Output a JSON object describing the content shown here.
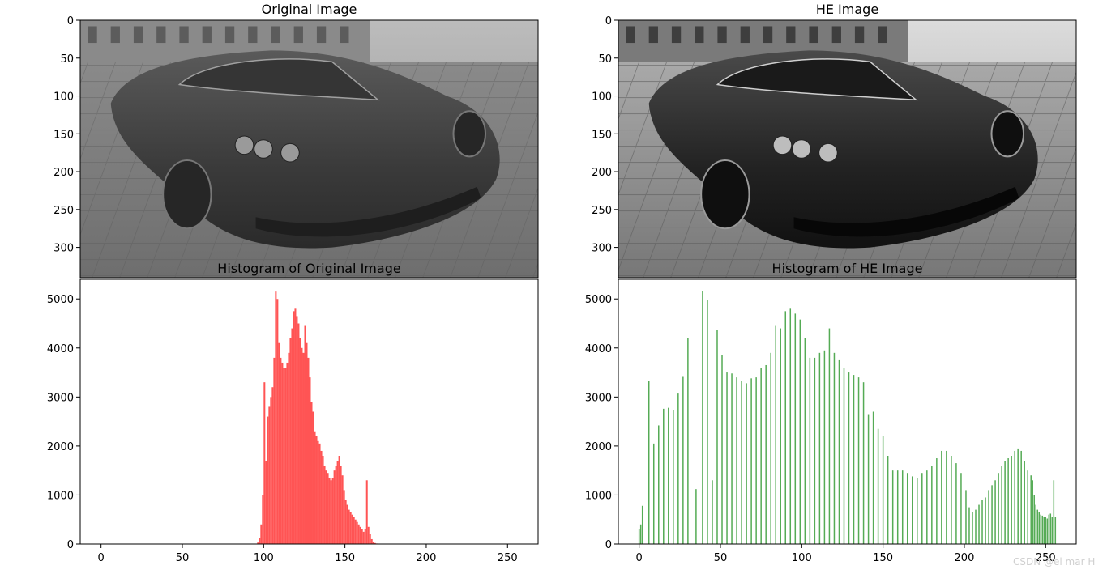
{
  "watermark": "CSDN @el mar H",
  "colors": {
    "original_hist": "#ff4b4b",
    "he_hist": "#4ca64c",
    "axes": "#000000",
    "background": "#ffffff"
  },
  "chart_data": [
    {
      "type": "image",
      "title": "Original Image",
      "content": "grayscale photograph of a sports car on cobblestones",
      "xlim": [
        0,
        600
      ],
      "ylim": [
        340,
        0
      ],
      "yticks": [
        0,
        50,
        100,
        150,
        200,
        250,
        300
      ]
    },
    {
      "type": "image",
      "title": "HE Image",
      "content": "histogram-equalized grayscale photograph of a sports car on cobblestones",
      "xlim": [
        0,
        600
      ],
      "ylim": [
        340,
        0
      ],
      "yticks": [
        0,
        50,
        100,
        150,
        200,
        250,
        300
      ]
    },
    {
      "type": "bar",
      "title": "Histogram of Original Image",
      "xlabel": "",
      "ylabel": "",
      "xlim": [
        -12.8,
        268.8
      ],
      "ylim": [
        0,
        5400
      ],
      "xticks": [
        0,
        50,
        100,
        150,
        200,
        250
      ],
      "yticks": [
        0,
        1000,
        2000,
        3000,
        4000,
        5000
      ],
      "color": "#ff4b4b",
      "x": [
        96,
        97,
        98,
        99,
        100,
        101,
        102,
        103,
        104,
        105,
        106,
        107,
        108,
        109,
        110,
        111,
        112,
        113,
        114,
        115,
        116,
        117,
        118,
        119,
        120,
        121,
        122,
        123,
        124,
        125,
        126,
        127,
        128,
        129,
        130,
        131,
        132,
        133,
        134,
        135,
        136,
        137,
        138,
        139,
        140,
        141,
        142,
        143,
        144,
        145,
        146,
        147,
        148,
        149,
        150,
        151,
        152,
        153,
        154,
        155,
        156,
        157,
        158,
        159,
        160,
        161,
        162,
        163,
        164,
        165,
        166,
        167,
        168,
        169,
        170,
        171,
        172,
        173,
        174,
        175,
        176,
        177,
        178,
        179,
        180
      ],
      "values": [
        30,
        120,
        400,
        1000,
        3300,
        1700,
        2600,
        2800,
        3000,
        3200,
        3800,
        5150,
        5000,
        4100,
        3800,
        3700,
        3600,
        3600,
        3700,
        3900,
        4200,
        4400,
        4750,
        4800,
        4650,
        4500,
        4200,
        4000,
        3900,
        4450,
        4100,
        3800,
        3400,
        2900,
        2700,
        2300,
        2200,
        2100,
        2050,
        1900,
        1800,
        1600,
        1500,
        1450,
        1350,
        1300,
        1350,
        1500,
        1600,
        1700,
        1800,
        1600,
        1400,
        1100,
        900,
        800,
        700,
        650,
        600,
        550,
        500,
        450,
        400,
        350,
        300,
        250,
        300,
        1300,
        350,
        200,
        100,
        50,
        20,
        10,
        5,
        3,
        2,
        1,
        1,
        0,
        0,
        0,
        0,
        0,
        0
      ],
      "values_note_omitted": false
    },
    {
      "type": "bar",
      "title": "Histogram of HE Image",
      "xlabel": "",
      "ylabel": "",
      "xlim": [
        -12.8,
        268.8
      ],
      "ylim": [
        0,
        5400
      ],
      "xticks": [
        0,
        50,
        100,
        150,
        200,
        250
      ],
      "yticks": [
        0,
        1000,
        2000,
        3000,
        4000,
        5000
      ],
      "color": "#4ca64c",
      "x": [
        0,
        1,
        2,
        6,
        9,
        12,
        15,
        18,
        21,
        24,
        27,
        30,
        35,
        39,
        42,
        45,
        48,
        51,
        54,
        57,
        60,
        63,
        66,
        69,
        72,
        75,
        78,
        81,
        84,
        87,
        90,
        93,
        96,
        99,
        102,
        105,
        108,
        111,
        114,
        117,
        120,
        123,
        126,
        129,
        132,
        135,
        138,
        141,
        144,
        147,
        150,
        153,
        156,
        159,
        162,
        165,
        168,
        171,
        174,
        177,
        180,
        183,
        186,
        189,
        192,
        195,
        198,
        201,
        203,
        205,
        207,
        209,
        211,
        213,
        215,
        217,
        219,
        221,
        223,
        225,
        227,
        229,
        231,
        233,
        235,
        237,
        239,
        241,
        242,
        243,
        244,
        245,
        246,
        247,
        248,
        249,
        250,
        251,
        252,
        253,
        254,
        255,
        256
      ],
      "values": [
        300,
        400,
        780,
        3320,
        2050,
        2420,
        2760,
        2780,
        2740,
        3070,
        3410,
        4210,
        1120,
        5160,
        4980,
        1300,
        4360,
        3850,
        3500,
        3480,
        3400,
        3320,
        3280,
        3380,
        3400,
        3600,
        3650,
        3900,
        4450,
        4400,
        4750,
        4800,
        4700,
        4580,
        4200,
        3800,
        3800,
        3900,
        3950,
        4400,
        3900,
        3750,
        3600,
        3500,
        3450,
        3400,
        3300,
        2650,
        2700,
        2350,
        2200,
        1800,
        1500,
        1500,
        1500,
        1450,
        1380,
        1350,
        1450,
        1500,
        1600,
        1750,
        1900,
        1900,
        1800,
        1650,
        1450,
        1100,
        750,
        650,
        700,
        800,
        900,
        950,
        1100,
        1200,
        1300,
        1450,
        1600,
        1700,
        1750,
        1800,
        1900,
        1950,
        1900,
        1700,
        1500,
        1400,
        1300,
        1000,
        800,
        700,
        650,
        600,
        580,
        560,
        550,
        520,
        600,
        620,
        550,
        1300,
        560
      ],
      "values_note_omitted": false
    }
  ]
}
